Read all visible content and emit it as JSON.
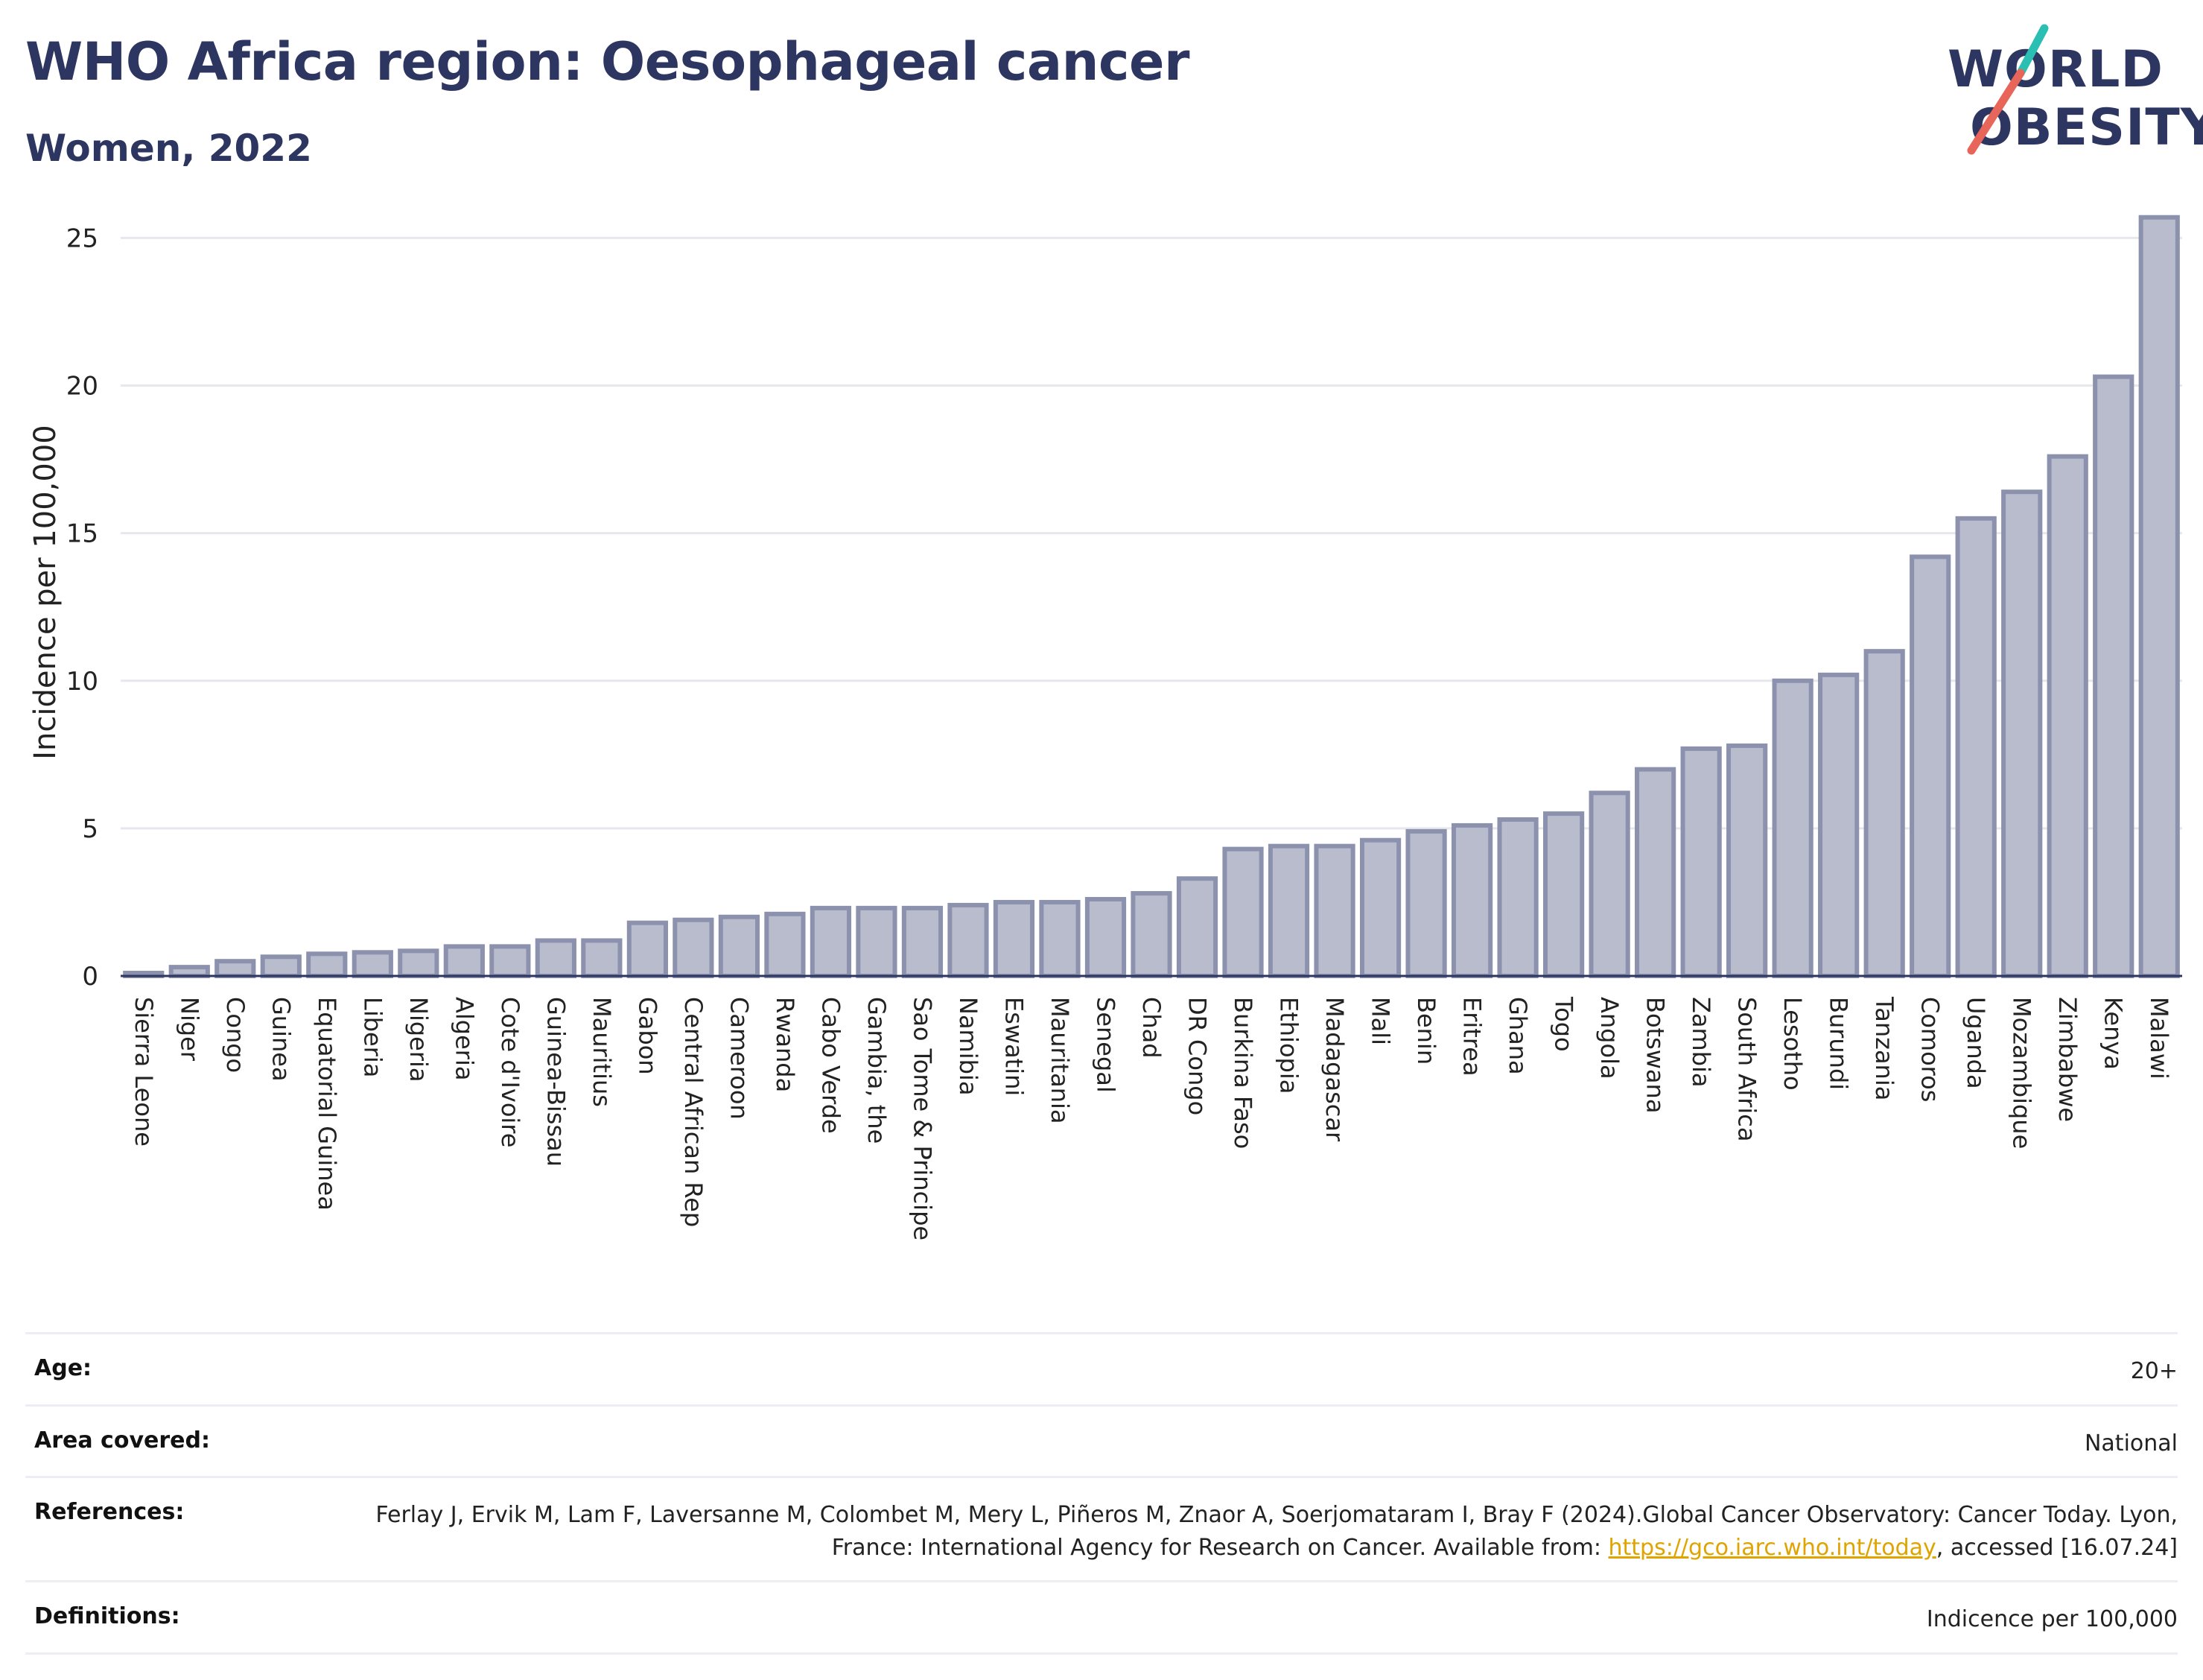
{
  "title": "WHO Africa region: Oesophageal cancer",
  "subtitle": "Women, 2022",
  "logo": {
    "line1": "WORLD",
    "line2": "OBESITY"
  },
  "colors": {
    "title": "#2d3561",
    "bar_fill": "#b8bccd",
    "bar_stroke": "#8c92ad",
    "grid": "#e6e8ee",
    "link": "#e0a400",
    "logo_slash_teal": "#2bbfb3",
    "logo_slash_red": "#e8655a"
  },
  "chart_data": {
    "type": "bar",
    "ylabel": "Incidence per 100,000",
    "ylim": [
      0,
      26.5
    ],
    "yticks": [
      0,
      5,
      10,
      15,
      20,
      25
    ],
    "grid": true,
    "categories": [
      "Sierra Leone",
      "Niger",
      "Congo",
      "Guinea",
      "Equatorial Guinea",
      "Liberia",
      "Nigeria",
      "Algeria",
      "Cote d'Ivoire",
      "Guinea-Bissau",
      "Mauritius",
      "Gabon",
      "Central African Rep",
      "Cameroon",
      "Rwanda",
      "Cabo Verde",
      "Gambia, the",
      "Sao Tome & Principe",
      "Namibia",
      "Eswatini",
      "Mauritania",
      "Senegal",
      "Chad",
      "DR Congo",
      "Burkina Faso",
      "Ethiopia",
      "Madagascar",
      "Mali",
      "Benin",
      "Eritrea",
      "Ghana",
      "Togo",
      "Angola",
      "Botswana",
      "Zambia",
      "South Africa",
      "Lesotho",
      "Burundi",
      "Tanzania",
      "Comoros",
      "Uganda",
      "Mozambique",
      "Zimbabwe",
      "Kenya",
      "Malawi"
    ],
    "values": [
      0.1,
      0.3,
      0.5,
      0.65,
      0.75,
      0.8,
      0.85,
      1.0,
      1.0,
      1.2,
      1.2,
      1.8,
      1.9,
      2.0,
      2.1,
      2.3,
      2.3,
      2.3,
      2.4,
      2.5,
      2.5,
      2.6,
      2.8,
      3.3,
      4.3,
      4.4,
      4.4,
      4.6,
      4.9,
      5.1,
      5.3,
      5.5,
      6.2,
      7.0,
      7.7,
      7.8,
      10.0,
      10.2,
      11.0,
      14.2,
      15.5,
      16.4,
      17.6,
      20.3,
      25.7
    ]
  },
  "info": [
    {
      "key": "Age:",
      "value": "20+"
    },
    {
      "key": "Area covered:",
      "value": "National"
    },
    {
      "key": "References:",
      "value_pre": "Ferlay J, Ervik M, Lam F, Laversanne M, Colombet M, Mery L, Piñeros M, Znaor A, Soerjomataram I, Bray F (2024).Global Cancer Observatory: Cancer Today. Lyon, France: International Agency for Research on Cancer. Available from: ",
      "link": "https://gco.iarc.who.int/today",
      "value_post": ", accessed [16.07.24]"
    },
    {
      "key": "Definitions:",
      "value": "Indicence per 100,000"
    }
  ]
}
